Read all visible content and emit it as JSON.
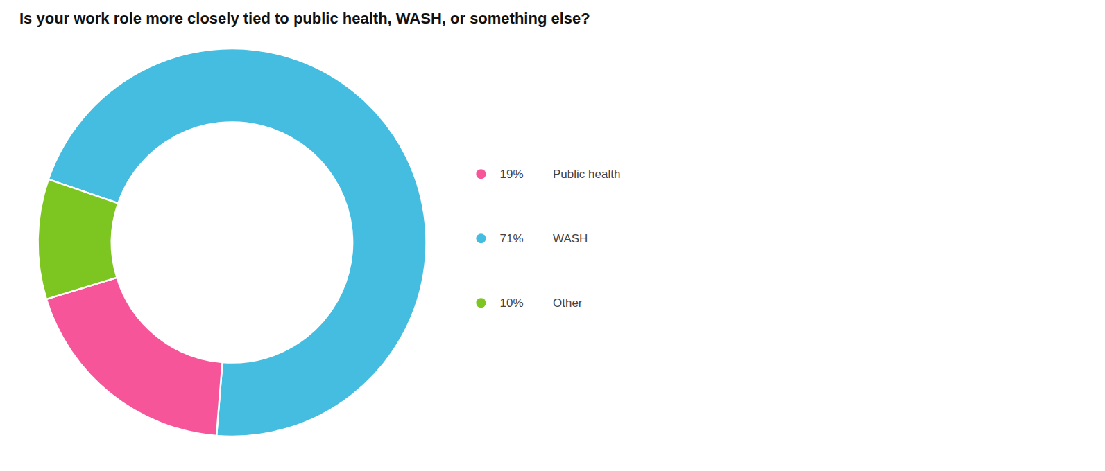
{
  "chart_data": {
    "type": "pie",
    "title": "Is your work role more closely tied to public health, WASH, or something else?",
    "categories": [
      "WASH",
      "Public health",
      "Other"
    ],
    "values": [
      71,
      19,
      10
    ],
    "value_labels": [
      "71%",
      "19%",
      "10%"
    ],
    "colors": [
      "#45BDE0",
      "#F7559A",
      "#7DC520"
    ],
    "legend": "right"
  }
}
